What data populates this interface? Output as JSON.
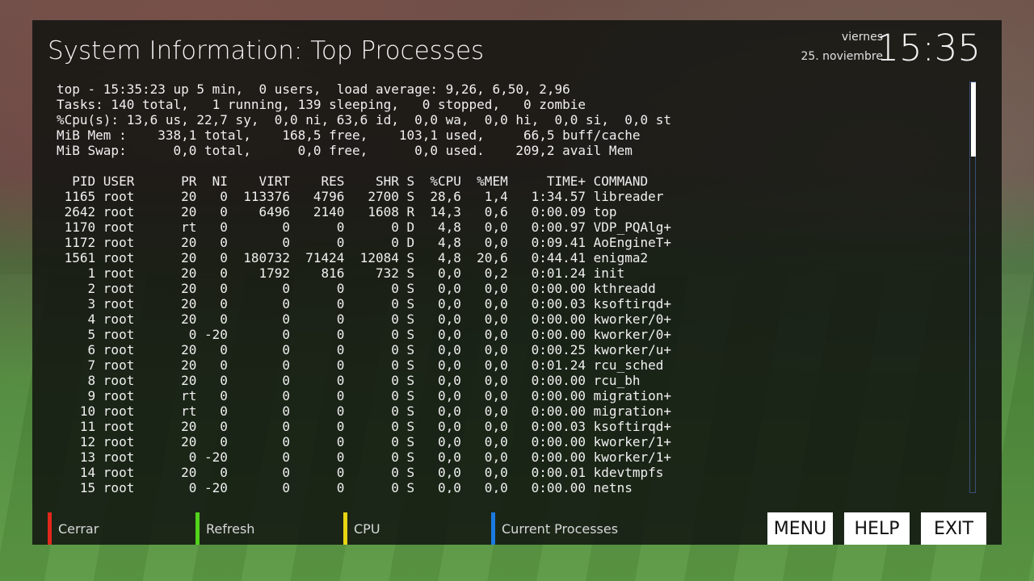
{
  "header": {
    "title": "System Information: Top Processes",
    "day_name": "viernes",
    "date": "25. noviembre",
    "clock": "15:35"
  },
  "terminal": {
    "lines": [
      "top - 15:35:23 up 5 min,  0 users,  load average: 9,26, 6,50, 2,96",
      "Tasks: 140 total,   1 running, 139 sleeping,   0 stopped,   0 zombie",
      "%Cpu(s): 13,6 us, 22,7 sy,  0,0 ni, 63,6 id,  0,0 wa,  0,0 hi,  0,0 si,  0,0 st",
      "MiB Mem :    338,1 total,    168,5 free,    103,1 used,     66,5 buff/cache",
      "MiB Swap:      0,0 total,      0,0 free,      0,0 used.    209,2 avail Mem",
      "",
      "  PID USER      PR  NI    VIRT    RES    SHR S  %CPU  %MEM     TIME+ COMMAND",
      " 1165 root      20   0  113376   4796   2700 S  28,6   1,4   1:34.57 libreader",
      " 2642 root      20   0    6496   2140   1608 R  14,3   0,6   0:00.09 top",
      " 1170 root      rt   0       0      0      0 D   4,8   0,0   0:00.97 VDP_PQAlg+",
      " 1172 root      20   0       0      0      0 D   4,8   0,0   0:09.41 AoEngineT+",
      " 1561 root      20   0  180732  71424  12084 S   4,8  20,6   0:44.41 enigma2",
      "    1 root      20   0    1792    816    732 S   0,0   0,2   0:01.24 init",
      "    2 root      20   0       0      0      0 S   0,0   0,0   0:00.00 kthreadd",
      "    3 root      20   0       0      0      0 S   0,0   0,0   0:00.03 ksoftirqd+",
      "    4 root      20   0       0      0      0 S   0,0   0,0   0:00.00 kworker/0+",
      "    5 root       0 -20       0      0      0 S   0,0   0,0   0:00.00 kworker/0+",
      "    6 root      20   0       0      0      0 S   0,0   0,0   0:00.25 kworker/u+",
      "    7 root      20   0       0      0      0 S   0,0   0,0   0:01.24 rcu_sched",
      "    8 root      20   0       0      0      0 S   0,0   0,0   0:00.00 rcu_bh",
      "    9 root      rt   0       0      0      0 S   0,0   0,0   0:00.00 migration+",
      "   10 root      rt   0       0      0      0 S   0,0   0,0   0:00.00 migration+",
      "   11 root      20   0       0      0      0 S   0,0   0,0   0:00.03 ksoftirqd+",
      "   12 root      20   0       0      0      0 S   0,0   0,0   0:00.00 kworker/1+",
      "   13 root       0 -20       0      0      0 S   0,0   0,0   0:00.00 kworker/1+",
      "   14 root      20   0       0      0      0 S   0,0   0,0   0:00.01 kdevtmpfs",
      "   15 root       0 -20       0      0      0 S   0,0   0,0   0:00.00 netns"
    ]
  },
  "scrollbar": {
    "thumb_fraction": 0.18,
    "position_fraction": 0.0
  },
  "color_buttons": [
    {
      "label": "Cerrar",
      "color": "#e0281c"
    },
    {
      "label": "Refresh",
      "color": "#52d21a"
    },
    {
      "label": "CPU",
      "color": "#e6d612"
    },
    {
      "label": "Current Processes",
      "color": "#1a7ae0"
    }
  ],
  "key_buttons": {
    "menu": "MENU",
    "help": "HELP",
    "exit": "EXIT"
  }
}
